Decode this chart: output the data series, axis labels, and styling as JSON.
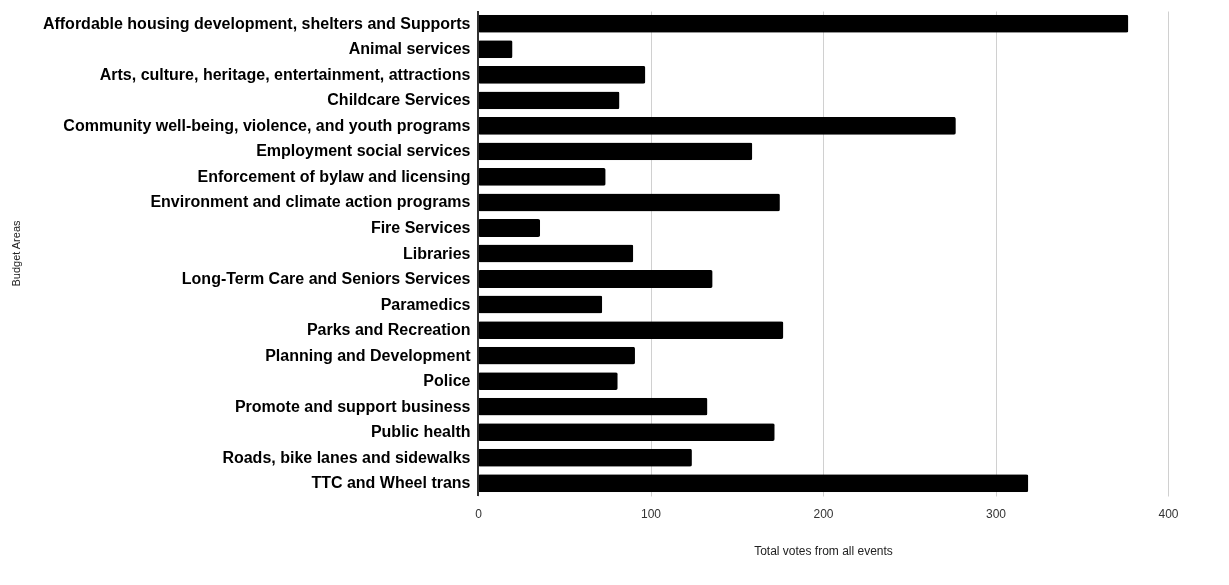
{
  "chart_data": {
    "type": "bar",
    "orientation": "horizontal",
    "xlabel": "Total votes from all events",
    "ylabel": "Budget Areas",
    "categories": [
      "Affordable housing development, shelters and Supports",
      "Animal services",
      "Arts, culture, heritage, entertainment, attractions",
      "Childcare Services",
      "Community well-being, violence, and youth programs",
      "Employment social services",
      "Enforcement of bylaw and licensing",
      "Environment and climate action programs",
      "Fire Services",
      "Libraries",
      "Long-Term Care and Seniors Services",
      "Paramedics",
      "Parks and Recreation",
      "Planning and Development",
      "Police",
      "Promote and support business",
      "Public health",
      "Roads, bike lanes and sidewalks",
      "TTC and Wheel trans"
    ],
    "values": [
      377,
      20,
      97,
      82,
      277,
      159,
      74,
      175,
      36,
      90,
      136,
      72,
      177,
      91,
      81,
      133,
      172,
      124,
      319
    ],
    "color": "#000000",
    "xlim": [
      0,
      400
    ],
    "xticks": [
      0,
      100,
      200,
      300,
      400
    ],
    "grid": "x"
  }
}
